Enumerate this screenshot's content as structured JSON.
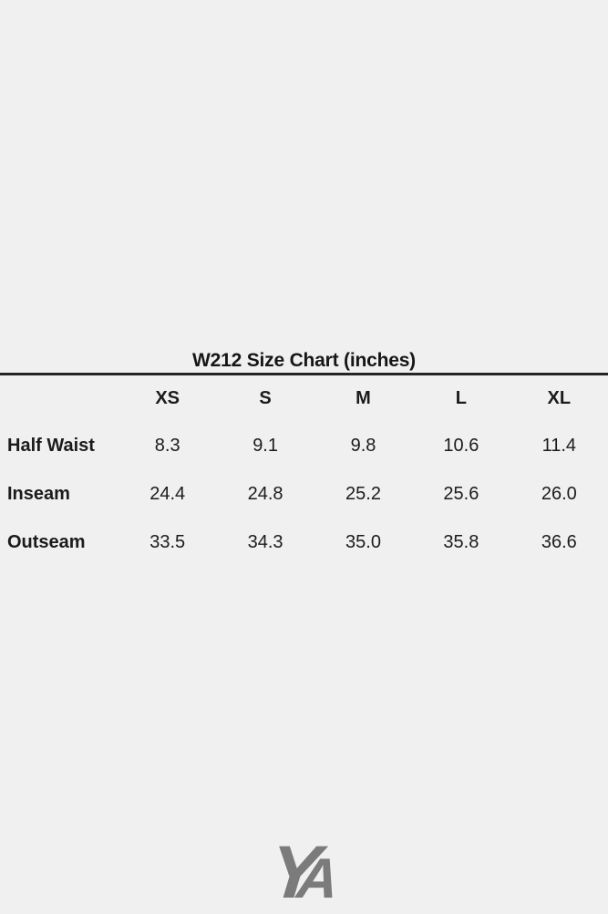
{
  "page": {
    "background": "#f0f0f0"
  },
  "table": {
    "title": "W212 Size Chart (inches)",
    "columns": [
      "XS",
      "S",
      "M",
      "L",
      "XL"
    ],
    "rows": [
      {
        "label": "Half Waist",
        "values": [
          "8.3",
          "9.1",
          "9.8",
          "10.6",
          "11.4"
        ]
      },
      {
        "label": "Inseam",
        "values": [
          "24.4",
          "24.8",
          "25.2",
          "25.6",
          "26.0"
        ]
      },
      {
        "label": "Outseam",
        "values": [
          "33.5",
          "34.3",
          "35.0",
          "35.8",
          "36.6"
        ]
      }
    ]
  },
  "logo": {
    "monogram": "YA",
    "letter_y": "Y",
    "letter_a": "A",
    "color": "#7b7b7b"
  },
  "chart_data": {
    "type": "table",
    "title": "W212 Size Chart (inches)",
    "unit": "inches",
    "columns": [
      "XS",
      "S",
      "M",
      "L",
      "XL"
    ],
    "rows": [
      {
        "label": "Half Waist",
        "values": [
          8.3,
          9.1,
          9.8,
          10.6,
          11.4
        ]
      },
      {
        "label": "Inseam",
        "values": [
          24.4,
          24.8,
          25.2,
          25.6,
          26.0
        ]
      },
      {
        "label": "Outseam",
        "values": [
          33.5,
          34.3,
          35.0,
          35.8,
          36.6
        ]
      }
    ]
  }
}
